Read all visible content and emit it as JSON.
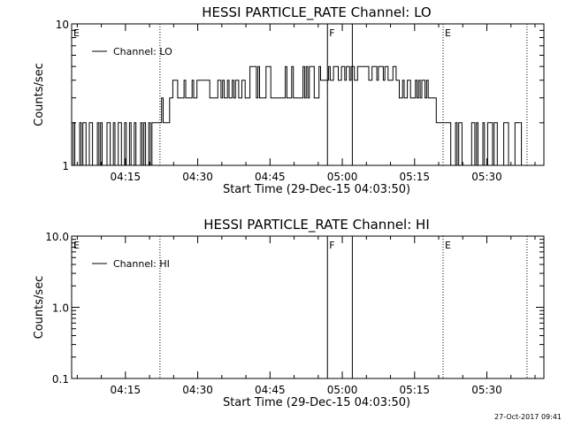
{
  "footer": {
    "timestamp": "27-Oct-2017 09:41"
  },
  "chart_data": [
    {
      "type": "line",
      "title": "HESSI PARTICLE_RATE Channel: LO",
      "xlabel": "Start Time (29-Dec-15 04:03:50)",
      "ylabel": "Counts/sec",
      "x_ticks": [
        "04:15",
        "04:30",
        "04:45",
        "05:00",
        "05:15",
        "05:30"
      ],
      "y_ticks": [
        "1",
        "10"
      ],
      "ylim": [
        1,
        10
      ],
      "y_scale": "log",
      "legend": {
        "position": "top-left",
        "entries": [
          "Channel: LO"
        ]
      },
      "flag_markers": [
        {
          "label": "E",
          "time": "04:03:50",
          "line": "none"
        },
        {
          "label": "",
          "time": "04:22:10",
          "line": "dotted"
        },
        {
          "label": "F",
          "time": "04:56:55",
          "line": "solid"
        },
        {
          "label": "",
          "time": "05:02:05",
          "line": "solid"
        },
        {
          "label": "E",
          "time": "05:20:55",
          "line": "dotted"
        },
        {
          "label": "",
          "time": "05:38:20",
          "line": "dotted"
        }
      ],
      "segments": [
        {
          "start": "04:03:50",
          "end": "04:20:50",
          "low": 1.0,
          "high": 2.0
        },
        {
          "start": "04:20:50",
          "end": "04:22:30",
          "low": 2.0,
          "high": 2.0
        },
        {
          "start": "04:22:30",
          "end": "04:24:10",
          "low": 2.0,
          "high": 3.0
        },
        {
          "start": "04:24:10",
          "end": "04:40:30",
          "low": 3.0,
          "high": 4.0
        },
        {
          "start": "04:40:30",
          "end": "04:55:30",
          "low": 3.0,
          "high": 5.0
        },
        {
          "start": "04:55:30",
          "end": "05:11:30",
          "low": 4.0,
          "high": 5.0
        },
        {
          "start": "05:11:30",
          "end": "05:18:50",
          "low": 3.0,
          "high": 4.0
        },
        {
          "start": "05:18:50",
          "end": "05:21:10",
          "low": 2.0,
          "high": 3.0
        },
        {
          "start": "05:21:10",
          "end": "05:22:10",
          "low": 2.0,
          "high": 2.0
        },
        {
          "start": "05:22:10",
          "end": "05:37:30",
          "low": 1.0,
          "high": 2.0
        }
      ],
      "series": [
        {
          "name": "Channel: LO",
          "color": "#000000"
        }
      ]
    },
    {
      "type": "line",
      "title": "HESSI PARTICLE_RATE Channel: HI",
      "xlabel": "Start Time (29-Dec-15 04:03:50)",
      "ylabel": "Counts/sec",
      "x_ticks": [
        "04:15",
        "04:30",
        "04:45",
        "05:00",
        "05:15",
        "05:30"
      ],
      "y_ticks": [
        "0.1",
        "1.0",
        "10.0"
      ],
      "ylim": [
        0.1,
        10
      ],
      "y_scale": "log",
      "legend": {
        "position": "top-left",
        "entries": [
          "Channel: HI"
        ]
      },
      "flag_markers": [
        {
          "label": "E",
          "time": "04:03:50",
          "line": "none"
        },
        {
          "label": "",
          "time": "04:22:10",
          "line": "dotted"
        },
        {
          "label": "F",
          "time": "04:56:55",
          "line": "solid"
        },
        {
          "label": "",
          "time": "05:02:05",
          "line": "solid"
        },
        {
          "label": "E",
          "time": "05:20:55",
          "line": "dotted"
        },
        {
          "label": "",
          "time": "05:38:20",
          "line": "dotted"
        }
      ],
      "segments": [],
      "series": [
        {
          "name": "Channel: HI",
          "color": "#000000"
        }
      ]
    }
  ]
}
